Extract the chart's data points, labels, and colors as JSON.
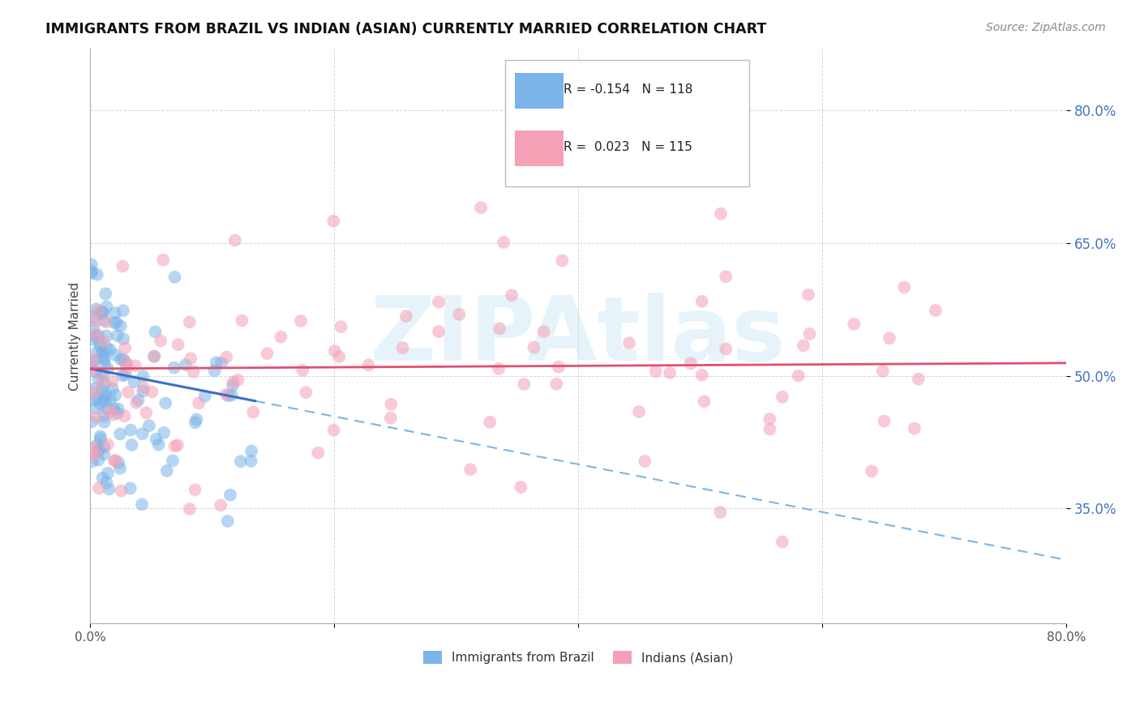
{
  "title": "IMMIGRANTS FROM BRAZIL VS INDIAN (ASIAN) CURRENTLY MARRIED CORRELATION CHART",
  "source": "Source: ZipAtlas.com",
  "ylabel": "Currently Married",
  "yticks": [
    0.35,
    0.5,
    0.65,
    0.8
  ],
  "ytick_labels": [
    "35.0%",
    "50.0%",
    "65.0%",
    "80.0%"
  ],
  "xmin": 0.0,
  "xmax": 0.8,
  "ymin": 0.22,
  "ymax": 0.87,
  "brazil_R": -0.154,
  "brazil_N": 118,
  "indian_R": 0.023,
  "indian_N": 115,
  "brazil_color": "#7ab4e8",
  "indian_color": "#f4a0b5",
  "brazil_line_color": "#3a6fc4",
  "indian_line_color": "#e05070",
  "watermark": "ZIPAtlas",
  "watermark_color": "#add8f0",
  "legend_label_brazil": "Immigrants from Brazil",
  "legend_label_indian": "Indians (Asian)",
  "background_color": "#ffffff"
}
